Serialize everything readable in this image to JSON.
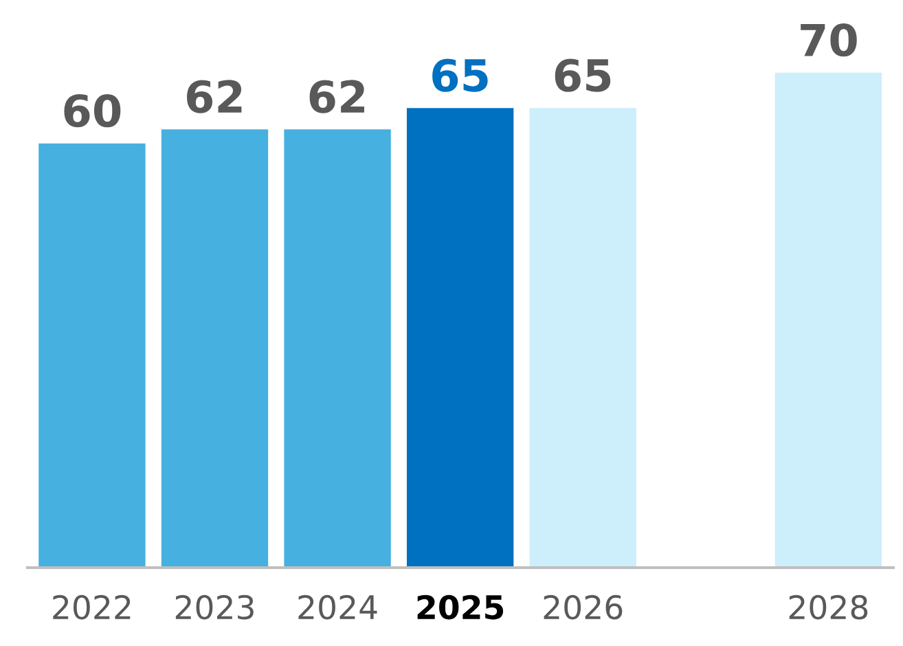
{
  "chart_data": {
    "type": "bar",
    "categories": [
      "2022",
      "2023",
      "2024",
      "2025",
      "2026",
      null,
      "2028"
    ],
    "values": [
      60,
      62,
      62,
      65,
      65,
      null,
      70
    ],
    "colors": [
      "#46b0e0",
      "#46b0e0",
      "#46b0e0",
      "#0070c0",
      "#cdeefb",
      "#cdeefb",
      "#cdeefb"
    ],
    "tick_labels": "x",
    "data_labels": true,
    "grid": false,
    "legend": false
  }
}
